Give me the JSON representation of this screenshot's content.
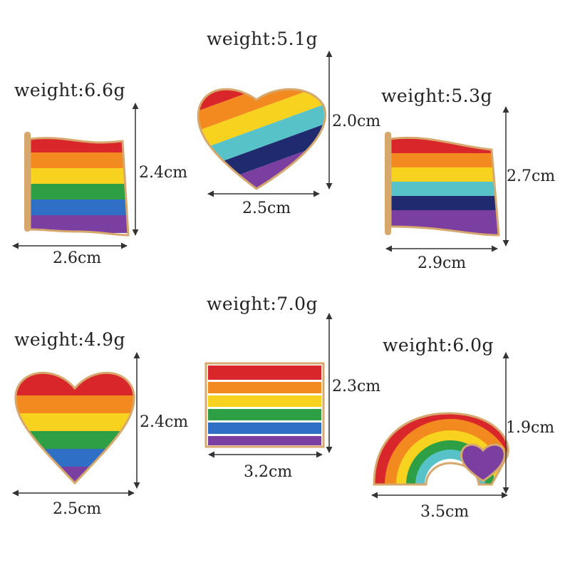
{
  "items": [
    {
      "weight": "weight:6.6g",
      "height": "2.4cm",
      "width": "2.6cm",
      "shape": "flag-icon"
    },
    {
      "weight": "weight:5.1g",
      "height": "2.0cm",
      "width": "2.5cm",
      "shape": "heart-icon"
    },
    {
      "weight": "weight:5.3g",
      "height": "2.7cm",
      "width": "2.9cm",
      "shape": "flag-icon"
    },
    {
      "weight": "weight:4.9g",
      "height": "2.4cm",
      "width": "2.5cm",
      "shape": "heart-icon"
    },
    {
      "weight": "weight:7.0g",
      "height": "2.3cm",
      "width": "3.2cm",
      "shape": "rectangle-flag-icon"
    },
    {
      "weight": "weight:6.0g",
      "height": "1.9cm",
      "width": "3.5cm",
      "shape": "rainbow-heart-icon"
    }
  ],
  "colors": {
    "red": "#d9262a",
    "orange": "#f38a1f",
    "yellow": "#f7d21e",
    "green": "#2e9f45",
    "blue": "#2f6fc6",
    "purple": "#7a3fa0",
    "teal": "#57c3c9",
    "navy": "#1f2b6e",
    "gold": "#d7a86e"
  }
}
